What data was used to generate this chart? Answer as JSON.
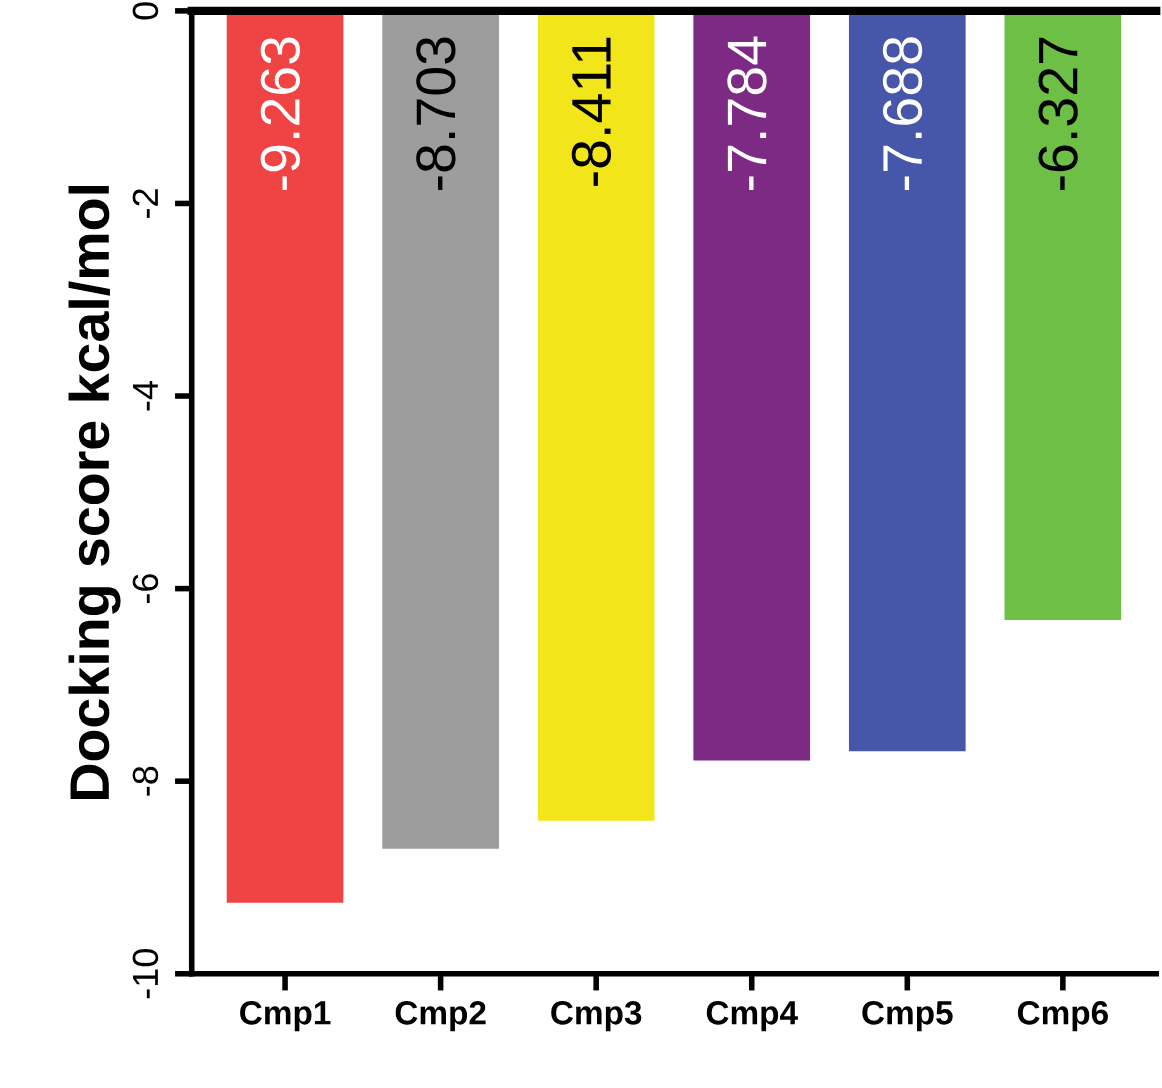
{
  "chart_data": {
    "type": "bar",
    "ylabel": "Docking score kcal/mol",
    "categories": [
      "Cmp1",
      "Cmp2",
      "Cmp3",
      "Cmp4",
      "Cmp5",
      "Cmp6"
    ],
    "values": [
      -9.263,
      -8.703,
      -8.411,
      -7.784,
      -7.688,
      -6.327
    ],
    "colors": [
      "#f04343",
      "#9d9d9d",
      "#f2e61b",
      "#7c2a84",
      "#4656a8",
      "#6dbf46"
    ],
    "ylim": [
      -10,
      0
    ],
    "yticks": [
      -10,
      -8,
      -6,
      -4,
      -2,
      0
    ],
    "grid": false,
    "data_labels": true
  }
}
